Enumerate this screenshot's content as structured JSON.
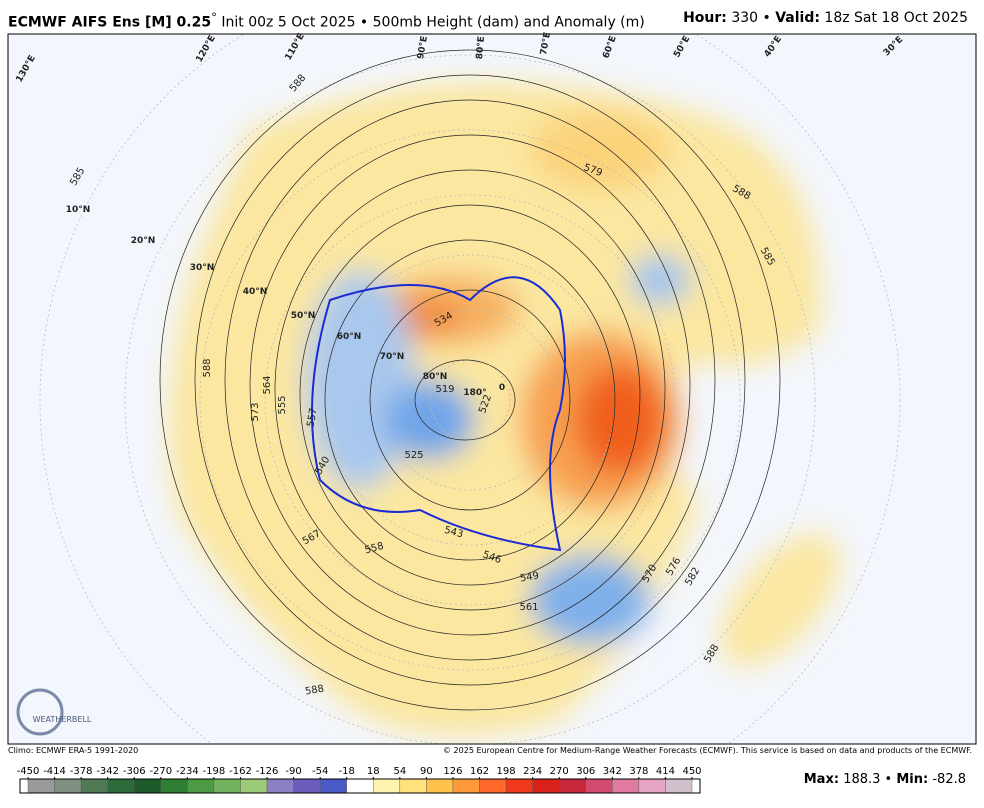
{
  "header": {
    "model": "ECMWF AIFS Ens [M] 0.25",
    "degree": "°",
    "info": "Init 00z 5 Oct 2025 • 500mb Height (dam) and Anomaly (m)",
    "hour_label": "Hour:",
    "hour": "330",
    "sep": "•",
    "valid_label": "Valid:",
    "valid": "18z Sat 18 Oct 2025"
  },
  "map": {
    "labels": [
      "10°N",
      "20°N",
      "30°N",
      "40°N",
      "50°N",
      "60°N",
      "70°N",
      "80°N",
      "180°",
      "0",
      "130°E",
      "120°E",
      "110°E",
      "90°E",
      "80°E",
      "70°E",
      "60°E",
      "50°E",
      "40°E",
      "30°E",
      "585",
      "588",
      "588",
      "579",
      "588",
      "585",
      "564",
      "573",
      "555",
      "557",
      "540",
      "567",
      "558",
      "543",
      "546",
      "549",
      "561",
      "570",
      "576",
      "582",
      "588",
      "588",
      "534",
      "519",
      "522",
      "525"
    ],
    "logo": "WEATHERBELL"
  },
  "footer": {
    "climo": "Climo: ECMWF ERA-5 1991-2020",
    "copyright": "© 2025 European Centre for Medium-Range Weather Forecasts (ECMWF). This service is based on data and products of the ECMWF."
  },
  "colorbar": {
    "ticks": [
      -450,
      -414,
      -378,
      -342,
      -306,
      -270,
      -234,
      -198,
      -162,
      -126,
      -90,
      -54,
      -18,
      18,
      54,
      90,
      126,
      162,
      198,
      234,
      270,
      306,
      342,
      378,
      414,
      450
    ],
    "colors": [
      "#9a9a9a",
      "#7f8f80",
      "#4f7a55",
      "#2f6a3a",
      "#1f5a2a",
      "#2e7d32",
      "#4d9a45",
      "#73b35f",
      "#9ccc7a",
      "#8c7fc4",
      "#6a5bbd",
      "#4a5bc8",
      "#ffffff",
      "#fff3b0",
      "#ffe27a",
      "#ffc24d",
      "#ff9a3a",
      "#ff6a2a",
      "#f2381a",
      "#d9201a",
      "#c8283c",
      "#d24a6e",
      "#e07aa0",
      "#e6a5c3",
      "#cfc0cc"
    ]
  },
  "stats": {
    "max_label": "Max:",
    "max": "188.3",
    "sep": "•",
    "min_label": "Min:",
    "min": "-82.8"
  }
}
